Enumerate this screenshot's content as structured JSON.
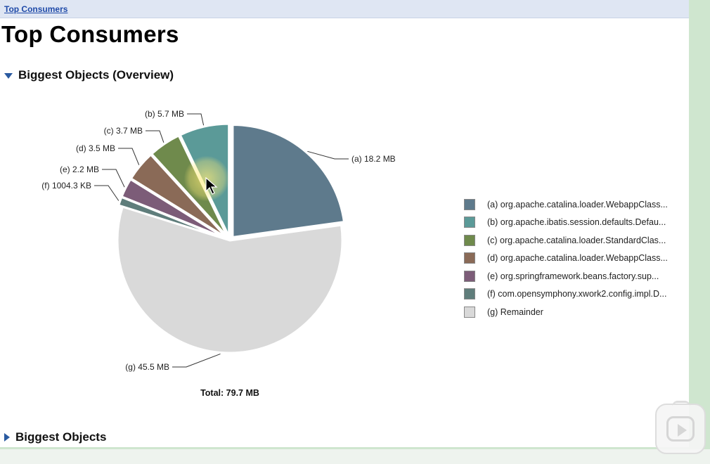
{
  "breadcrumb": {
    "label": "Top Consumers"
  },
  "page": {
    "title": "Top Consumers"
  },
  "sections": {
    "overview": {
      "label": "Biggest Objects (Overview)",
      "expanded": true
    },
    "objects": {
      "label": "Biggest Objects",
      "expanded": false
    }
  },
  "chart_data": {
    "type": "pie",
    "title": "",
    "total_label": "Total: 79.7 MB",
    "slices": [
      {
        "key": "a",
        "label": "(a) 18.2 MB",
        "value_mb": 18.2,
        "color": "#5e7a8c",
        "legend": "(a)  org.apache.catalina.loader.WebappClass..."
      },
      {
        "key": "b",
        "label": "(b) 5.7 MB",
        "value_mb": 5.7,
        "color": "#5b9a98",
        "legend": "(b)  org.apache.ibatis.session.defaults.Defau..."
      },
      {
        "key": "c",
        "label": "(c) 3.7 MB",
        "value_mb": 3.7,
        "color": "#6f8a4c",
        "legend": "(c)  org.apache.catalina.loader.StandardClas..."
      },
      {
        "key": "d",
        "label": "(d) 3.5 MB",
        "value_mb": 3.5,
        "color": "#8a6a57",
        "legend": "(d)  org.apache.catalina.loader.WebappClass..."
      },
      {
        "key": "e",
        "label": "(e) 2.2 MB",
        "value_mb": 2.2,
        "color": "#7c5c78",
        "legend": "(e)  org.springframework.beans.factory.sup..."
      },
      {
        "key": "f",
        "label": "(f) 1004.3 KB",
        "value_mb": 0.98,
        "color": "#5f7d7b",
        "legend": "(f)  com.opensymphony.xwork2.config.impl.D..."
      },
      {
        "key": "g",
        "label": "(g) 45.5 MB",
        "value_mb": 45.5,
        "color": "#d9d9d9",
        "legend": "(g)  Remainder"
      }
    ]
  }
}
